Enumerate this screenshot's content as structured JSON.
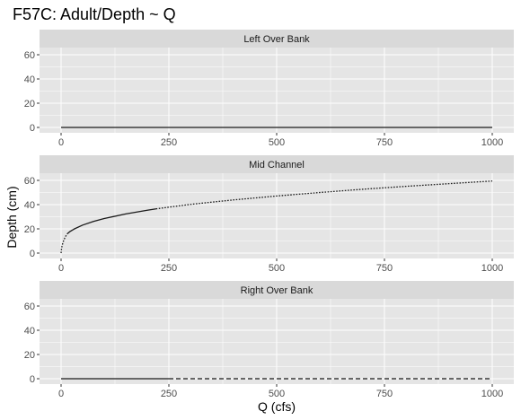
{
  "chart_data": {
    "type": "line",
    "title": "F57C: Adult/Depth ~ Q",
    "xlabel": "Q (cfs)",
    "ylabel": "Depth (cm)",
    "xlim": [
      0,
      1000
    ],
    "ylim": [
      0,
      60
    ],
    "x_ticks": [
      "0",
      "250",
      "500",
      "750",
      "1000"
    ],
    "y_ticks": [
      "0",
      "20",
      "40",
      "60"
    ],
    "grid": true,
    "legend": "none",
    "colors": {
      "panel_bg": "#e5e5e5",
      "strip_bg": "#d9d9d9",
      "grid": "#ffffff",
      "line": "#1a1a1a"
    },
    "panels": [
      {
        "strip": "Left Over Bank",
        "series": [
          {
            "line_style": "solid",
            "x": [
              0,
              1000
            ],
            "y": [
              0,
              0
            ]
          }
        ]
      },
      {
        "strip": "Mid Channel",
        "series": [
          {
            "line_style": "dotted",
            "x": [
              0,
              1,
              2,
              4,
              6,
              8,
              10,
              14
            ],
            "y": [
              0,
              3.5,
              5.5,
              8.3,
              10.3,
              12,
              13.5,
              15.8
            ]
          },
          {
            "line_style": "solid",
            "x": [
              14,
              20,
              30,
              50,
              75,
              100,
              150,
              200,
              220
            ],
            "y": [
              15.8,
              17.6,
              19.8,
              23.1,
              26.1,
              28.5,
              32.3,
              35.4,
              36.5
            ]
          },
          {
            "line_style": "dotted",
            "x": [
              220,
              300,
              400,
              500,
              600,
              700,
              800,
              900,
              1000
            ],
            "y": [
              36.5,
              40.2,
              43.9,
              47.1,
              50.0,
              52.7,
              55.1,
              57.3,
              59.5
            ]
          }
        ]
      },
      {
        "strip": "Right Over Bank",
        "series": [
          {
            "line_style": "solid",
            "x": [
              0,
              250
            ],
            "y": [
              0,
              0
            ]
          },
          {
            "line_style": "dashed",
            "x": [
              250,
              1000
            ],
            "y": [
              0,
              0
            ]
          }
        ]
      }
    ]
  }
}
